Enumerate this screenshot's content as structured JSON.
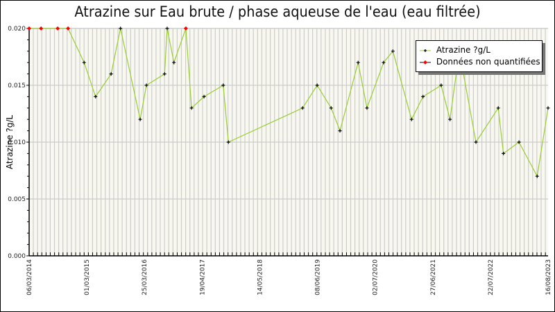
{
  "chart_data": {
    "type": "line",
    "title": "Atrazine sur Eau brute / phase aqueuse de l'eau (eau filtrée)",
    "xlabel": "",
    "ylabel": "Atrazine ?g/L",
    "ylim": [
      0,
      0.02
    ],
    "yticks": [
      "0.000",
      "0.005",
      "0.010",
      "0.015",
      "0.020"
    ],
    "xtick_labels": [
      "06/03/2014",
      "01/03/2015",
      "25/03/2016",
      "19/04/2017",
      "14/05/2018",
      "08/06/2019",
      "02/07/2020",
      "27/06/2021",
      "22/07/2022",
      "16/08/2023"
    ],
    "grid": true,
    "legend_position": "upper right",
    "series": [
      {
        "name": "Atrazine ?g/L",
        "color": "#99cc33",
        "points": [
          {
            "x": 0.0,
            "y": 0.02,
            "q": false
          },
          {
            "x": 0.023,
            "y": 0.02,
            "q": false
          },
          {
            "x": 0.055,
            "y": 0.02,
            "q": false
          },
          {
            "x": 0.075,
            "y": 0.02,
            "q": false
          },
          {
            "x": 0.106,
            "y": 0.017,
            "q": true
          },
          {
            "x": 0.128,
            "y": 0.014,
            "q": true
          },
          {
            "x": 0.158,
            "y": 0.016,
            "q": true
          },
          {
            "x": 0.176,
            "y": 0.02,
            "q": true
          },
          {
            "x": 0.214,
            "y": 0.012,
            "q": true
          },
          {
            "x": 0.226,
            "y": 0.015,
            "q": true
          },
          {
            "x": 0.261,
            "y": 0.016,
            "q": true
          },
          {
            "x": 0.266,
            "y": 0.02,
            "q": true
          },
          {
            "x": 0.279,
            "y": 0.017,
            "q": true
          },
          {
            "x": 0.302,
            "y": 0.02,
            "q": false
          },
          {
            "x": 0.313,
            "y": 0.013,
            "q": true
          },
          {
            "x": 0.337,
            "y": 0.014,
            "q": true
          },
          {
            "x": 0.374,
            "y": 0.015,
            "q": true
          },
          {
            "x": 0.384,
            "y": 0.01,
            "q": true
          },
          {
            "x": 0.527,
            "y": 0.013,
            "q": true
          },
          {
            "x": 0.555,
            "y": 0.015,
            "q": true
          },
          {
            "x": 0.582,
            "y": 0.013,
            "q": true
          },
          {
            "x": 0.599,
            "y": 0.011,
            "q": true
          },
          {
            "x": 0.634,
            "y": 0.017,
            "q": true
          },
          {
            "x": 0.651,
            "y": 0.013,
            "q": true
          },
          {
            "x": 0.683,
            "y": 0.017,
            "q": true
          },
          {
            "x": 0.701,
            "y": 0.018,
            "q": true
          },
          {
            "x": 0.737,
            "y": 0.012,
            "q": true
          },
          {
            "x": 0.759,
            "y": 0.014,
            "q": true
          },
          {
            "x": 0.794,
            "y": 0.015,
            "q": true
          },
          {
            "x": 0.811,
            "y": 0.012,
            "q": true
          },
          {
            "x": 0.829,
            "y": 0.018,
            "q": true
          },
          {
            "x": 0.861,
            "y": 0.01,
            "q": true
          },
          {
            "x": 0.904,
            "y": 0.013,
            "q": true
          },
          {
            "x": 0.914,
            "y": 0.009,
            "q": true
          },
          {
            "x": 0.944,
            "y": 0.01,
            "q": true
          },
          {
            "x": 0.979,
            "y": 0.007,
            "q": true
          },
          {
            "x": 1.0,
            "y": 0.013,
            "q": true
          }
        ]
      }
    ],
    "legend": [
      {
        "label": "Atrazine ?g/L",
        "marker_color": "#000000",
        "line_color": "#99cc33"
      },
      {
        "label": "Données non quantifiées",
        "marker_color": "#ff0000",
        "line_color": "#000000"
      }
    ]
  },
  "header": {
    "title": "Atrazine sur Eau brute / phase aqueuse de l'eau (eau filtrée)"
  },
  "axis": {
    "ylabel": "Atrazine ?g/L",
    "y_first_tick_fragment": "4",
    "y_second_fragment": "5"
  },
  "legend": {
    "item1": "Atrazine ?g/L",
    "item2": "Données non quantifiées"
  },
  "colors": {
    "plot_bg": "#f8f8f0",
    "grid": "#cccccc",
    "line": "#99cc33",
    "marker": "#000000",
    "nq_marker": "#ff0000"
  }
}
